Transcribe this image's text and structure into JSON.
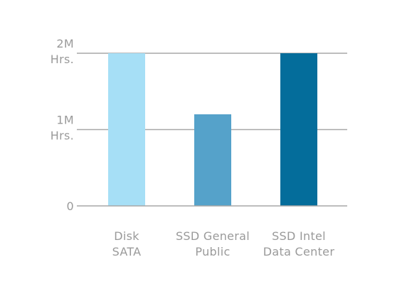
{
  "chart_data": {
    "type": "bar",
    "title": "",
    "xlabel": "",
    "ylabel": "",
    "ylim": [
      0,
      2000000
    ],
    "grid": true,
    "y_ticks": [
      {
        "value": 0,
        "label": [
          "0"
        ]
      },
      {
        "value": 1000000,
        "label": [
          "1M",
          "Hrs."
        ]
      },
      {
        "value": 2000000,
        "label": [
          "2M",
          "Hrs."
        ]
      }
    ],
    "categories": [
      [
        "Disk",
        "SATA"
      ],
      [
        "SSD General",
        "Public"
      ],
      [
        "SSD Intel",
        "Data Center"
      ]
    ],
    "values": [
      2000000,
      1200000,
      2000000
    ],
    "colors": [
      "#a6dff6",
      "#55a2ca",
      "#046d9b"
    ]
  }
}
